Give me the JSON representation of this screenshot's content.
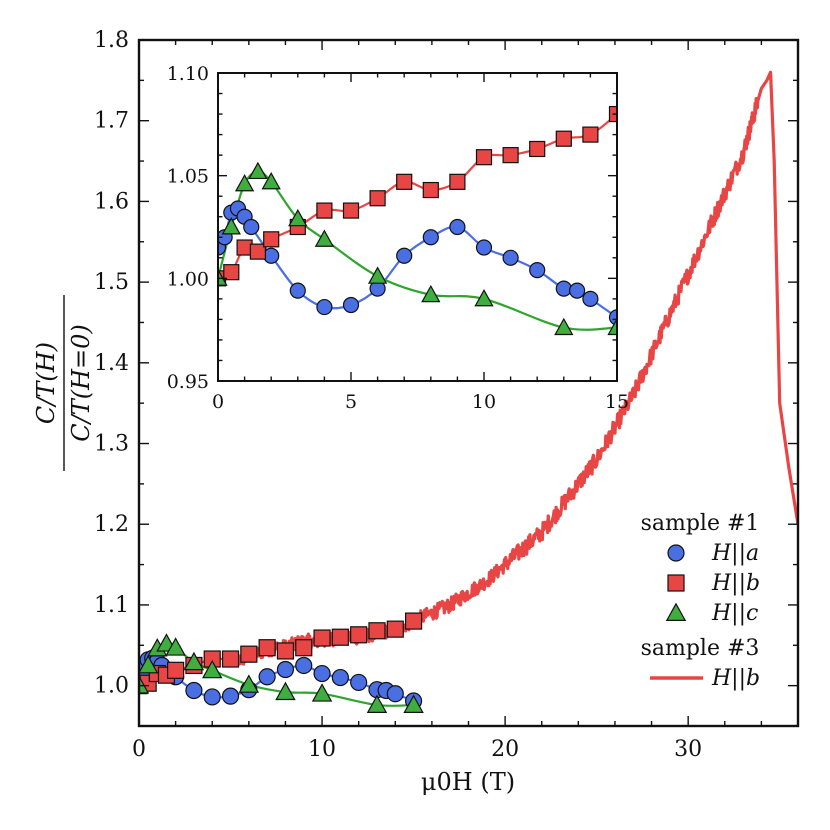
{
  "chart_data": [
    {
      "type": "scatter",
      "role": "main",
      "xlabel": "μ0H (T)",
      "ylabel": "C/T(H) / C/T(H=0)",
      "xlim": [
        0,
        36
      ],
      "ylim": [
        0.95,
        1.8
      ],
      "xticks": [
        0,
        10,
        20,
        30
      ],
      "yticks": [
        1.0,
        1.1,
        1.2,
        1.3,
        1.4,
        1.5,
        1.6,
        1.7,
        1.8
      ],
      "xtick_labels": [
        "0",
        "10",
        "20",
        "30"
      ],
      "ytick_labels": [
        "1.0",
        "1.1",
        "1.2",
        "1.3",
        "1.4",
        "1.5",
        "1.6",
        "1.7",
        "1.8"
      ],
      "legend": {
        "placement": "bottom-right",
        "groups": [
          {
            "title": "sample #1",
            "entries": [
              {
                "label": "H||a",
                "marker": "circle",
                "color": "#4a6fe3"
              },
              {
                "label": "H||b",
                "marker": "square",
                "color": "#e84545"
              },
              {
                "label": "H||c",
                "marker": "triangle",
                "color": "#3fae3f"
              }
            ]
          },
          {
            "title": "sample #3",
            "entries": [
              {
                "label": "H||b",
                "marker": "line",
                "color": "#e84545"
              }
            ]
          }
        ]
      },
      "series": [
        {
          "name": "H||a",
          "marker": "circle",
          "color": "#4a6fe3",
          "line_color": "#4a6fe3",
          "x": [
            0,
            0.25,
            0.5,
            0.75,
            1,
            1.25,
            2,
            3,
            4,
            5,
            6,
            7,
            8,
            9,
            10,
            11,
            12,
            13,
            13.5,
            14,
            15
          ],
          "y": [
            1.015,
            1.02,
            1.032,
            1.034,
            1.03,
            1.025,
            1.011,
            0.994,
            0.986,
            0.987,
            0.995,
            1.011,
            1.02,
            1.025,
            1.015,
            1.01,
            1.004,
            0.995,
            0.994,
            0.99,
            0.981
          ]
        },
        {
          "name": "H||b",
          "marker": "square",
          "color": "#e84545",
          "line_color": "#e84545",
          "x": [
            0,
            0.5,
            1,
            1.5,
            2,
            3,
            4,
            5,
            6,
            7,
            8,
            9,
            10,
            11,
            12,
            13,
            14,
            15
          ],
          "y": [
            1.0,
            1.003,
            1.015,
            1.013,
            1.019,
            1.025,
            1.033,
            1.033,
            1.039,
            1.047,
            1.043,
            1.047,
            1.059,
            1.06,
            1.063,
            1.068,
            1.07,
            1.08
          ]
        },
        {
          "name": "H||c",
          "marker": "triangle",
          "color": "#3fae3f",
          "line_color": "#2fa52f",
          "x": [
            0,
            0.5,
            1,
            1.5,
            2,
            3,
            4,
            6,
            8,
            10,
            13,
            15
          ],
          "y": [
            1.0,
            1.025,
            1.046,
            1.052,
            1.047,
            1.029,
            1.019,
            1.001,
            0.992,
            0.99,
            0.976,
            0.976
          ]
        },
        {
          "name": "H||b (sample #3)",
          "marker": "line",
          "color": "#e84545",
          "x": [
            5,
            6,
            7,
            8,
            9,
            10,
            11,
            12,
            13,
            14,
            15,
            16,
            17,
            18,
            19,
            20,
            21,
            22,
            23,
            24,
            25,
            26,
            27,
            28,
            29,
            30,
            31,
            32,
            33,
            33.5,
            34,
            34.3,
            34.5,
            34.7,
            35,
            35.5,
            36
          ],
          "y": [
            1.03,
            1.035,
            1.045,
            1.048,
            1.055,
            1.055,
            1.06,
            1.06,
            1.065,
            1.07,
            1.08,
            1.09,
            1.1,
            1.115,
            1.13,
            1.15,
            1.17,
            1.19,
            1.22,
            1.25,
            1.28,
            1.32,
            1.36,
            1.41,
            1.46,
            1.51,
            1.56,
            1.61,
            1.66,
            1.7,
            1.74,
            1.75,
            1.76,
            1.65,
            1.35,
            1.27,
            1.2
          ]
        }
      ]
    },
    {
      "type": "scatter",
      "role": "inset",
      "xlim": [
        0,
        15
      ],
      "ylim": [
        0.95,
        1.1
      ],
      "xticks": [
        0,
        5,
        10,
        15
      ],
      "yticks": [
        0.95,
        1.0,
        1.05,
        1.1
      ],
      "xtick_labels": [
        "0",
        "5",
        "10",
        "15"
      ],
      "ytick_labels": [
        "0.95",
        "1.00",
        "1.05",
        "1.10"
      ],
      "series": [
        {
          "name": "H||a",
          "marker": "circle",
          "color": "#4a6fe3",
          "line_color": "#4a6fe3",
          "x": [
            0,
            0.25,
            0.5,
            0.75,
            1,
            1.25,
            2,
            3,
            4,
            5,
            6,
            7,
            8,
            9,
            10,
            11,
            12,
            13,
            13.5,
            14,
            15
          ],
          "y": [
            1.015,
            1.02,
            1.032,
            1.034,
            1.03,
            1.025,
            1.011,
            0.994,
            0.986,
            0.987,
            0.995,
            1.011,
            1.02,
            1.025,
            1.015,
            1.01,
            1.004,
            0.995,
            0.994,
            0.99,
            0.981
          ]
        },
        {
          "name": "H||b",
          "marker": "square",
          "color": "#e84545",
          "line_color": "#e84545",
          "x": [
            0,
            0.5,
            1,
            1.5,
            2,
            3,
            4,
            5,
            6,
            7,
            8,
            9,
            10,
            11,
            12,
            13,
            14,
            15
          ],
          "y": [
            1.0,
            1.003,
            1.015,
            1.013,
            1.019,
            1.025,
            1.033,
            1.033,
            1.039,
            1.047,
            1.043,
            1.047,
            1.059,
            1.06,
            1.063,
            1.068,
            1.07,
            1.08
          ]
        },
        {
          "name": "H||c",
          "marker": "triangle",
          "color": "#3fae3f",
          "line_color": "#2fa52f",
          "x": [
            0,
            0.5,
            1,
            1.5,
            2,
            3,
            4,
            6,
            8,
            10,
            13,
            15
          ],
          "y": [
            1.0,
            1.025,
            1.046,
            1.052,
            1.047,
            1.029,
            1.019,
            1.001,
            0.992,
            0.99,
            0.976,
            0.976
          ]
        }
      ]
    }
  ]
}
